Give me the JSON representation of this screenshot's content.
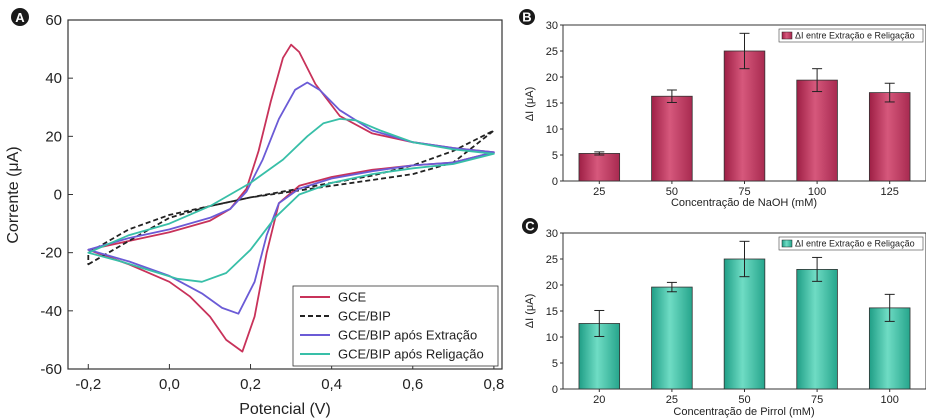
{
  "chart_data": [
    {
      "panel_label": "A",
      "type": "line",
      "xlabel": "Potencial (V)",
      "ylabel": "Corrente (μA)",
      "xlim": [
        -0.25,
        0.82
      ],
      "ylim": [
        -60,
        60
      ],
      "x_ticks": [
        -0.2,
        0.0,
        0.2,
        0.4,
        0.6,
        0.8
      ],
      "x_tick_labels": [
        "-0,2",
        "0,0",
        "0,2",
        "0,4",
        "0,6",
        "0,8"
      ],
      "y_ticks": [
        -60,
        -40,
        -20,
        0,
        20,
        40,
        60
      ],
      "y_tick_labels": [
        "-60",
        "-40",
        "-20",
        "0",
        "20",
        "40",
        "60"
      ],
      "legend_position": "bottom-right",
      "series": [
        {
          "name": "GCE",
          "color": "#c8325a",
          "dash": "solid",
          "forward": [
            [
              -0.2,
              -19
            ],
            [
              -0.1,
              -16
            ],
            [
              0.0,
              -13
            ],
            [
              0.1,
              -9
            ],
            [
              0.15,
              -5
            ],
            [
              0.19,
              2
            ],
            [
              0.22,
              15
            ],
            [
              0.25,
              32
            ],
            [
              0.28,
              47
            ],
            [
              0.3,
              51.5
            ],
            [
              0.32,
              49
            ],
            [
              0.36,
              38
            ],
            [
              0.42,
              27
            ],
            [
              0.5,
              21
            ],
            [
              0.6,
              18
            ],
            [
              0.7,
              16
            ],
            [
              0.8,
              14.5
            ]
          ],
          "reverse": [
            [
              0.8,
              14.5
            ],
            [
              0.7,
              11
            ],
            [
              0.6,
              10
            ],
            [
              0.5,
              8.5
            ],
            [
              0.4,
              6
            ],
            [
              0.32,
              3
            ],
            [
              0.27,
              -3
            ],
            [
              0.24,
              -20
            ],
            [
              0.21,
              -42
            ],
            [
              0.18,
              -54
            ],
            [
              0.14,
              -50
            ],
            [
              0.1,
              -42
            ],
            [
              0.05,
              -35
            ],
            [
              0.0,
              -30
            ],
            [
              -0.1,
              -24
            ],
            [
              -0.2,
              -19
            ]
          ]
        },
        {
          "name": "GCE/BIP",
          "color": "#222222",
          "dash": "dashed",
          "forward": [
            [
              -0.2,
              -24
            ],
            [
              -0.1,
              -16
            ],
            [
              0.0,
              -8
            ],
            [
              0.1,
              -4
            ],
            [
              0.2,
              -1
            ],
            [
              0.3,
              1.5
            ],
            [
              0.4,
              4
            ],
            [
              0.5,
              6.5
            ],
            [
              0.6,
              10
            ],
            [
              0.7,
              15
            ],
            [
              0.8,
              22
            ]
          ],
          "reverse": [
            [
              0.8,
              17
            ],
            [
              0.7,
              11
            ],
            [
              0.6,
              7
            ],
            [
              0.5,
              5
            ],
            [
              0.4,
              3
            ],
            [
              0.3,
              1
            ],
            [
              0.2,
              -1
            ],
            [
              0.1,
              -4
            ],
            [
              0.0,
              -7
            ],
            [
              -0.1,
              -12
            ],
            [
              -0.2,
              -20
            ]
          ]
        },
        {
          "name": "GCE/BIP após Extração",
          "color": "#6b5bd6",
          "dash": "solid",
          "forward": [
            [
              -0.2,
              -19
            ],
            [
              -0.1,
              -15
            ],
            [
              0.0,
              -12
            ],
            [
              0.1,
              -8
            ],
            [
              0.15,
              -5
            ],
            [
              0.19,
              1
            ],
            [
              0.23,
              12
            ],
            [
              0.27,
              26
            ],
            [
              0.31,
              36
            ],
            [
              0.34,
              38.5
            ],
            [
              0.37,
              36
            ],
            [
              0.42,
              29
            ],
            [
              0.5,
              22
            ],
            [
              0.6,
              18
            ],
            [
              0.7,
              16
            ],
            [
              0.8,
              14.5
            ]
          ],
          "reverse": [
            [
              0.8,
              14.5
            ],
            [
              0.7,
              11
            ],
            [
              0.6,
              10
            ],
            [
              0.5,
              8
            ],
            [
              0.4,
              5.5
            ],
            [
              0.32,
              2
            ],
            [
              0.27,
              -3
            ],
            [
              0.24,
              -14
            ],
            [
              0.21,
              -30
            ],
            [
              0.17,
              -41
            ],
            [
              0.13,
              -39
            ],
            [
              0.08,
              -34
            ],
            [
              0.0,
              -28
            ],
            [
              -0.1,
              -23
            ],
            [
              -0.2,
              -19
            ]
          ]
        },
        {
          "name": "GCE/BIP após Religação",
          "color": "#38bfa8",
          "dash": "solid",
          "forward": [
            [
              -0.2,
              -20
            ],
            [
              -0.1,
              -14
            ],
            [
              0.0,
              -10
            ],
            [
              0.1,
              -4
            ],
            [
              0.2,
              4
            ],
            [
              0.28,
              12
            ],
            [
              0.34,
              20
            ],
            [
              0.38,
              24.5
            ],
            [
              0.42,
              26
            ],
            [
              0.46,
              25.5
            ],
            [
              0.52,
              22
            ],
            [
              0.6,
              18
            ],
            [
              0.7,
              15.5
            ],
            [
              0.8,
              14
            ]
          ],
          "reverse": [
            [
              0.8,
              14
            ],
            [
              0.7,
              10.5
            ],
            [
              0.6,
              9
            ],
            [
              0.5,
              7
            ],
            [
              0.4,
              4
            ],
            [
              0.32,
              0
            ],
            [
              0.26,
              -8
            ],
            [
              0.2,
              -19
            ],
            [
              0.14,
              -27
            ],
            [
              0.08,
              -30
            ],
            [
              0.02,
              -29
            ],
            [
              -0.05,
              -26
            ],
            [
              -0.12,
              -23
            ],
            [
              -0.2,
              -20
            ]
          ]
        }
      ]
    },
    {
      "panel_label": "B",
      "type": "bar",
      "xlabel": "Concentração de NaOH (mM)",
      "ylabel": "ΔI (μA)",
      "categories": [
        "25",
        "50",
        "75",
        "100",
        "125"
      ],
      "values": [
        5.3,
        16.3,
        25.0,
        19.4,
        17.0
      ],
      "errors": [
        0.3,
        1.2,
        3.4,
        2.2,
        1.8
      ],
      "ylim": [
        0,
        30
      ],
      "y_ticks": [
        0,
        5,
        10,
        15,
        20,
        25,
        30
      ],
      "series_name": "ΔI entre Extração e Religação",
      "color": "#c2385e",
      "legend_position": "top-right"
    },
    {
      "panel_label": "C",
      "type": "bar",
      "xlabel": "Concentração de Pirrol (mM)",
      "ylabel": "ΔI (μA)",
      "categories": [
        "20",
        "25",
        "50",
        "75",
        "100"
      ],
      "values": [
        12.6,
        19.6,
        25.0,
        23.0,
        15.6
      ],
      "errors": [
        2.5,
        0.9,
        3.4,
        2.3,
        2.6
      ],
      "ylim": [
        0,
        30
      ],
      "y_ticks": [
        0,
        5,
        10,
        15,
        20,
        25,
        30
      ],
      "series_name": "ΔI entre Extração e Religação",
      "color": "#3bbfa3",
      "legend_position": "top-right"
    }
  ]
}
